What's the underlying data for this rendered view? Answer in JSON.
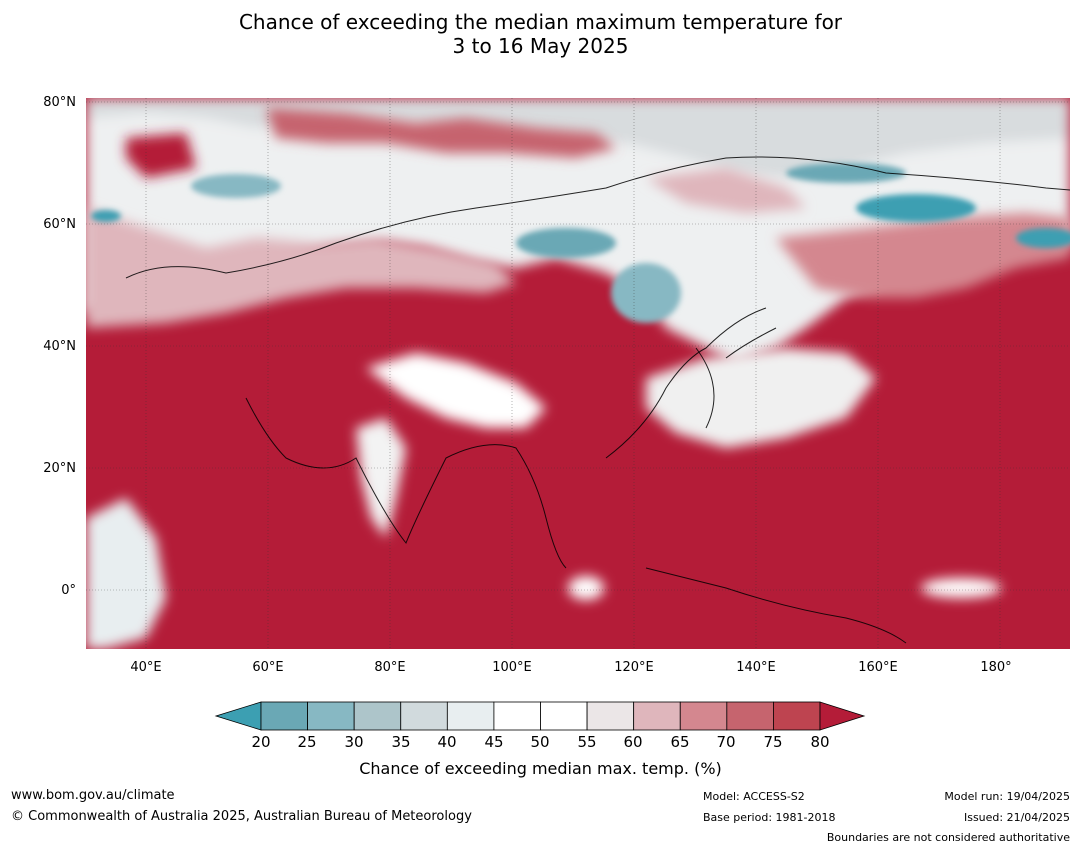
{
  "title": {
    "line1": "Chance of exceeding the median maximum temperature for",
    "line2": "3 to 16 May 2025"
  },
  "map": {
    "lat_labels": [
      "80°N",
      "60°N",
      "40°N",
      "20°N",
      "0°"
    ],
    "lon_labels": [
      "40°E",
      "60°E",
      "80°E",
      "100°E",
      "120°E",
      "140°E",
      "160°E",
      "180°"
    ],
    "background_color": "#b41c38",
    "ocean_color": "#b41c38"
  },
  "legend": {
    "ticks": [
      "20",
      "25",
      "30",
      "35",
      "40",
      "45",
      "50",
      "55",
      "60",
      "65",
      "70",
      "75",
      "80"
    ],
    "colors": [
      "#3c9fb2",
      "#6aa8b5",
      "#87b8c3",
      "#adc5ca",
      "#d1dadd",
      "#e8eef0",
      "#ffffff",
      "#ffffff",
      "#ebe6e7",
      "#dfb6bc",
      "#d4878f",
      "#c6646e",
      "#be4450",
      "#b41c38"
    ],
    "label": "Chance of exceeding median max. temp. (%)"
  },
  "footer": {
    "website": "www.bom.gov.au/climate",
    "copyright": "© Commonwealth of Australia 2025, Australian Bureau of Meteorology",
    "model": "Model: ACCESS-S2",
    "base_period": "Base period: 1981-2018",
    "model_run": "Model run: 19/04/2025",
    "issued": "Issued: 21/04/2025",
    "disclaimer": "Boundaries are not considered authoritative"
  }
}
